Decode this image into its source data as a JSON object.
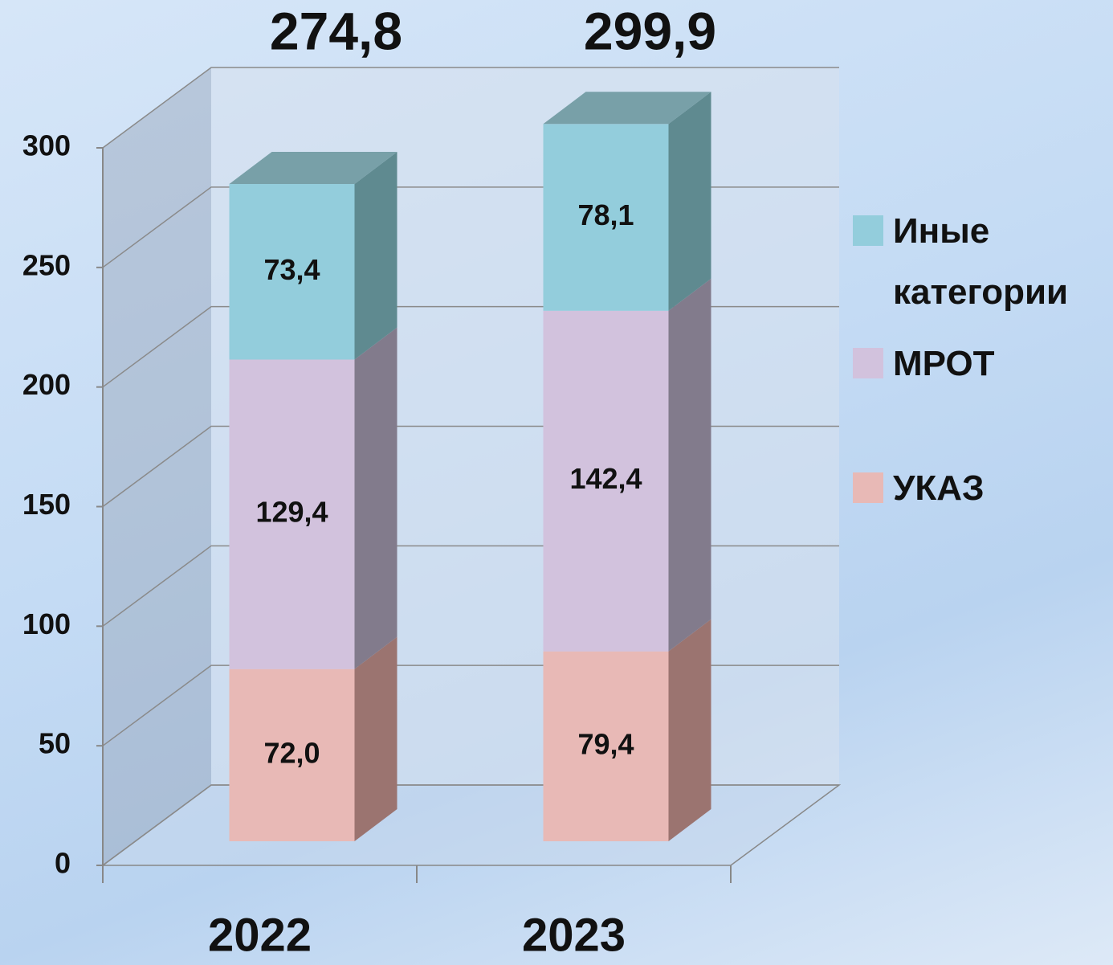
{
  "chart_data": {
    "type": "bar3d_stacked",
    "categories": [
      "2022",
      "2023"
    ],
    "series": [
      {
        "name": "УКАЗ",
        "color": "#e8b9b6",
        "values": [
          72.0,
          79.4
        ],
        "value_labels": [
          "72,0",
          "79,4"
        ]
      },
      {
        "name": "МРОТ",
        "color": "#d2c2dd",
        "values": [
          129.4,
          142.4
        ],
        "value_labels": [
          "129,4",
          "142,4"
        ]
      },
      {
        "name": "Иные категории",
        "color": "#93cddc",
        "values": [
          73.4,
          78.1
        ],
        "value_labels": [
          "73,4",
          "78,1"
        ]
      }
    ],
    "totals": [
      274.8,
      299.9
    ],
    "total_labels": [
      "274,8",
      "299,9"
    ],
    "ylim": [
      0,
      300
    ],
    "yticks": [
      0,
      50,
      100,
      150,
      200,
      250,
      300
    ],
    "grid": true,
    "legend": "right"
  }
}
